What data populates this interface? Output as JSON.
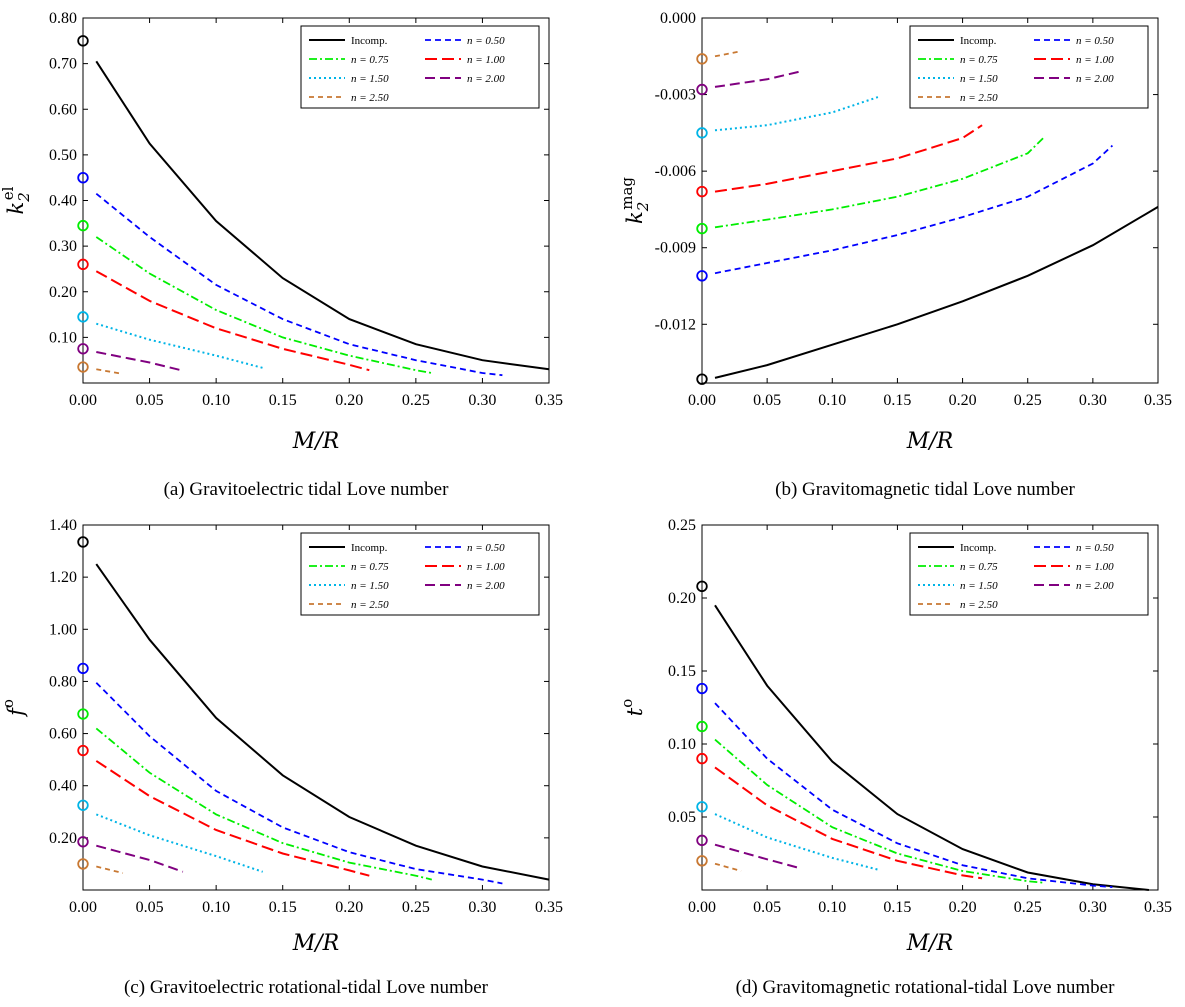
{
  "chart_data": [
    {
      "type": "line",
      "caption": "(a) Gravitoelectric tidal Love number",
      "xlabel": "M/R",
      "ylabel": "k2el",
      "xlim": [
        0,
        0.35
      ],
      "ylim": [
        0,
        0.8
      ],
      "xticks": [
        0,
        0.05,
        0.1,
        0.15,
        0.2,
        0.25,
        0.3,
        0.35
      ],
      "xtick_labels": [
        "0.00",
        "0.05",
        "0.10",
        "0.15",
        "0.20",
        "0.25",
        "0.30",
        "0.35"
      ],
      "yticks": [
        0.1,
        0.2,
        0.3,
        0.4,
        0.5,
        0.6,
        0.7,
        0.8
      ],
      "ytick_labels": [
        "0.10",
        "0.20",
        "0.30",
        "0.40",
        "0.50",
        "0.60",
        "0.70",
        "0.80"
      ],
      "legend_position": "top-right",
      "markers": [
        0.75,
        0.45,
        0.345,
        0.26,
        0.145,
        0.075,
        0.035
      ],
      "series": [
        {
          "name": "Incomp.",
          "x": [
            0.01,
            0.05,
            0.1,
            0.15,
            0.2,
            0.25,
            0.3,
            0.35
          ],
          "values": [
            0.705,
            0.525,
            0.355,
            0.23,
            0.14,
            0.085,
            0.05,
            0.03
          ]
        },
        {
          "name": "n = 0.50",
          "x": [
            0.01,
            0.05,
            0.1,
            0.15,
            0.2,
            0.25,
            0.3,
            0.315
          ],
          "values": [
            0.415,
            0.32,
            0.215,
            0.14,
            0.085,
            0.05,
            0.022,
            0.017
          ]
        },
        {
          "name": "n = 0.75",
          "x": [
            0.01,
            0.05,
            0.1,
            0.15,
            0.2,
            0.25,
            0.262
          ],
          "values": [
            0.32,
            0.24,
            0.16,
            0.1,
            0.06,
            0.028,
            0.022
          ]
        },
        {
          "name": "n = 1.00",
          "x": [
            0.01,
            0.05,
            0.1,
            0.15,
            0.2,
            0.215
          ],
          "values": [
            0.245,
            0.18,
            0.12,
            0.075,
            0.04,
            0.028
          ]
        },
        {
          "name": "n = 1.50",
          "x": [
            0.01,
            0.05,
            0.1,
            0.135
          ],
          "values": [
            0.13,
            0.095,
            0.06,
            0.033
          ]
        },
        {
          "name": "n = 2.00",
          "x": [
            0.01,
            0.05,
            0.075
          ],
          "values": [
            0.068,
            0.045,
            0.027
          ]
        },
        {
          "name": "n = 2.50",
          "x": [
            0.01,
            0.03
          ],
          "values": [
            0.03,
            0.02
          ]
        }
      ]
    },
    {
      "type": "line",
      "caption": "(b) Gravitomagnetic tidal Love number",
      "xlabel": "M/R",
      "ylabel": "k2mag",
      "xlim": [
        0,
        0.35
      ],
      "ylim": [
        -0.0143,
        0
      ],
      "xticks": [
        0,
        0.05,
        0.1,
        0.15,
        0.2,
        0.25,
        0.3,
        0.35
      ],
      "xtick_labels": [
        "0.00",
        "0.05",
        "0.10",
        "0.15",
        "0.20",
        "0.25",
        "0.30",
        "0.35"
      ],
      "yticks": [
        -0.012,
        -0.009,
        -0.006,
        -0.003,
        0
      ],
      "ytick_labels": [
        "-0.012",
        "-0.009",
        "-0.006",
        "-0.003",
        "0.000"
      ],
      "legend_position": "top-right",
      "markers": [
        -0.01415,
        -0.0101,
        -0.00825,
        -0.0068,
        -0.0045,
        -0.0028,
        -0.0016
      ],
      "series": [
        {
          "name": "Incomp.",
          "x": [
            0.01,
            0.05,
            0.1,
            0.15,
            0.2,
            0.25,
            0.3,
            0.35
          ],
          "values": [
            -0.0141,
            -0.0136,
            -0.0128,
            -0.012,
            -0.0111,
            -0.0101,
            -0.0089,
            -0.0074
          ]
        },
        {
          "name": "n = 0.50",
          "x": [
            0.01,
            0.05,
            0.1,
            0.15,
            0.2,
            0.25,
            0.3,
            0.315
          ],
          "values": [
            -0.01,
            -0.0096,
            -0.0091,
            -0.0085,
            -0.0078,
            -0.007,
            -0.0057,
            -0.005
          ]
        },
        {
          "name": "n = 0.75",
          "x": [
            0.01,
            0.05,
            0.1,
            0.15,
            0.2,
            0.25,
            0.262
          ],
          "values": [
            -0.0082,
            -0.0079,
            -0.0075,
            -0.007,
            -0.0063,
            -0.0053,
            -0.0047
          ]
        },
        {
          "name": "n = 1.00",
          "x": [
            0.01,
            0.05,
            0.1,
            0.15,
            0.2,
            0.215
          ],
          "values": [
            -0.0068,
            -0.0065,
            -0.006,
            -0.0055,
            -0.0047,
            -0.0042
          ]
        },
        {
          "name": "n = 1.50",
          "x": [
            0.01,
            0.05,
            0.1,
            0.135
          ],
          "values": [
            -0.0044,
            -0.0042,
            -0.0037,
            -0.0031
          ]
        },
        {
          "name": "n = 2.00",
          "x": [
            0.01,
            0.05,
            0.075
          ],
          "values": [
            -0.0027,
            -0.0024,
            -0.0021
          ]
        },
        {
          "name": "n = 2.50",
          "x": [
            0.01,
            0.03
          ],
          "values": [
            -0.0015,
            -0.0013
          ]
        }
      ]
    },
    {
      "type": "line",
      "caption": "(c) Gravitoelectric rotational-tidal Love number",
      "xlabel": "M/R",
      "ylabel": "fo",
      "xlim": [
        0,
        0.35
      ],
      "ylim": [
        0,
        1.4
      ],
      "xticks": [
        0,
        0.05,
        0.1,
        0.15,
        0.2,
        0.25,
        0.3,
        0.35
      ],
      "xtick_labels": [
        "0.00",
        "0.05",
        "0.10",
        "0.15",
        "0.20",
        "0.25",
        "0.30",
        "0.35"
      ],
      "yticks": [
        0.2,
        0.4,
        0.6,
        0.8,
        1.0,
        1.2,
        1.4
      ],
      "ytick_labels": [
        "0.20",
        "0.40",
        "0.60",
        "0.80",
        "1.00",
        "1.20",
        "1.40"
      ],
      "legend_position": "top-right",
      "markers": [
        1.335,
        0.85,
        0.675,
        0.535,
        0.325,
        0.185,
        0.1
      ],
      "series": [
        {
          "name": "Incomp.",
          "x": [
            0.01,
            0.05,
            0.1,
            0.15,
            0.2,
            0.25,
            0.3,
            0.35
          ],
          "values": [
            1.25,
            0.96,
            0.66,
            0.44,
            0.28,
            0.17,
            0.09,
            0.04
          ]
        },
        {
          "name": "n = 0.50",
          "x": [
            0.01,
            0.05,
            0.1,
            0.15,
            0.2,
            0.25,
            0.3,
            0.315
          ],
          "values": [
            0.795,
            0.59,
            0.38,
            0.24,
            0.145,
            0.08,
            0.04,
            0.025
          ]
        },
        {
          "name": "n = 0.75",
          "x": [
            0.01,
            0.05,
            0.1,
            0.15,
            0.2,
            0.25,
            0.262
          ],
          "values": [
            0.62,
            0.45,
            0.29,
            0.18,
            0.105,
            0.055,
            0.04
          ]
        },
        {
          "name": "n = 1.00",
          "x": [
            0.01,
            0.05,
            0.1,
            0.15,
            0.2,
            0.215
          ],
          "values": [
            0.495,
            0.36,
            0.23,
            0.14,
            0.075,
            0.055
          ]
        },
        {
          "name": "n = 1.50",
          "x": [
            0.01,
            0.05,
            0.1,
            0.135
          ],
          "values": [
            0.29,
            0.21,
            0.13,
            0.07
          ]
        },
        {
          "name": "n = 2.00",
          "x": [
            0.01,
            0.05,
            0.075
          ],
          "values": [
            0.17,
            0.115,
            0.07
          ]
        },
        {
          "name": "n = 2.50",
          "x": [
            0.01,
            0.03
          ],
          "values": [
            0.09,
            0.065
          ]
        }
      ]
    },
    {
      "type": "line",
      "caption": "(d) Gravitomagnetic rotational-tidal Love number",
      "xlabel": "M/R",
      "ylabel": "to",
      "xlim": [
        0,
        0.35
      ],
      "ylim": [
        0,
        0.25
      ],
      "xticks": [
        0,
        0.05,
        0.1,
        0.15,
        0.2,
        0.25,
        0.3,
        0.35
      ],
      "xtick_labels": [
        "0.00",
        "0.05",
        "0.10",
        "0.15",
        "0.20",
        "0.25",
        "0.30",
        "0.35"
      ],
      "yticks": [
        0.05,
        0.1,
        0.15,
        0.2,
        0.25
      ],
      "ytick_labels": [
        "0.05",
        "0.10",
        "0.15",
        "0.20",
        "0.25"
      ],
      "legend_position": "top-right",
      "markers": [
        0.208,
        0.138,
        0.112,
        0.09,
        0.057,
        0.034,
        0.02
      ],
      "series": [
        {
          "name": "Incomp.",
          "x": [
            0.01,
            0.05,
            0.1,
            0.15,
            0.2,
            0.25,
            0.3,
            0.343
          ],
          "values": [
            0.195,
            0.14,
            0.088,
            0.052,
            0.028,
            0.012,
            0.004,
            0
          ]
        },
        {
          "name": "n = 0.50",
          "x": [
            0.01,
            0.05,
            0.1,
            0.15,
            0.2,
            0.25,
            0.3,
            0.315
          ],
          "values": [
            0.128,
            0.09,
            0.055,
            0.032,
            0.017,
            0.008,
            0.003,
            0.002
          ]
        },
        {
          "name": "n = 0.75",
          "x": [
            0.01,
            0.05,
            0.1,
            0.15,
            0.2,
            0.25,
            0.262
          ],
          "values": [
            0.103,
            0.072,
            0.043,
            0.025,
            0.013,
            0.006,
            0.005
          ]
        },
        {
          "name": "n = 1.00",
          "x": [
            0.01,
            0.05,
            0.1,
            0.15,
            0.2,
            0.215
          ],
          "values": [
            0.084,
            0.058,
            0.035,
            0.02,
            0.01,
            0.008
          ]
        },
        {
          "name": "n = 1.50",
          "x": [
            0.01,
            0.05,
            0.1,
            0.135
          ],
          "values": [
            0.052,
            0.036,
            0.022,
            0.014
          ]
        },
        {
          "name": "n = 2.00",
          "x": [
            0.01,
            0.05,
            0.075
          ],
          "values": [
            0.031,
            0.021,
            0.015
          ]
        },
        {
          "name": "n = 2.50",
          "x": [
            0.01,
            0.03
          ],
          "values": [
            0.018,
            0.013
          ]
        }
      ]
    }
  ],
  "styles": {
    "series_colors": [
      "#000000",
      "#0000ff",
      "#00ee00",
      "#ff0000",
      "#00b4e6",
      "#800080",
      "#c87832"
    ],
    "legend_labels": [
      "Incomp.",
      "n = 0.50",
      "n = 0.75",
      "n = 1.00",
      "n = 1.50",
      "n = 2.00",
      "n = 2.50"
    ]
  }
}
